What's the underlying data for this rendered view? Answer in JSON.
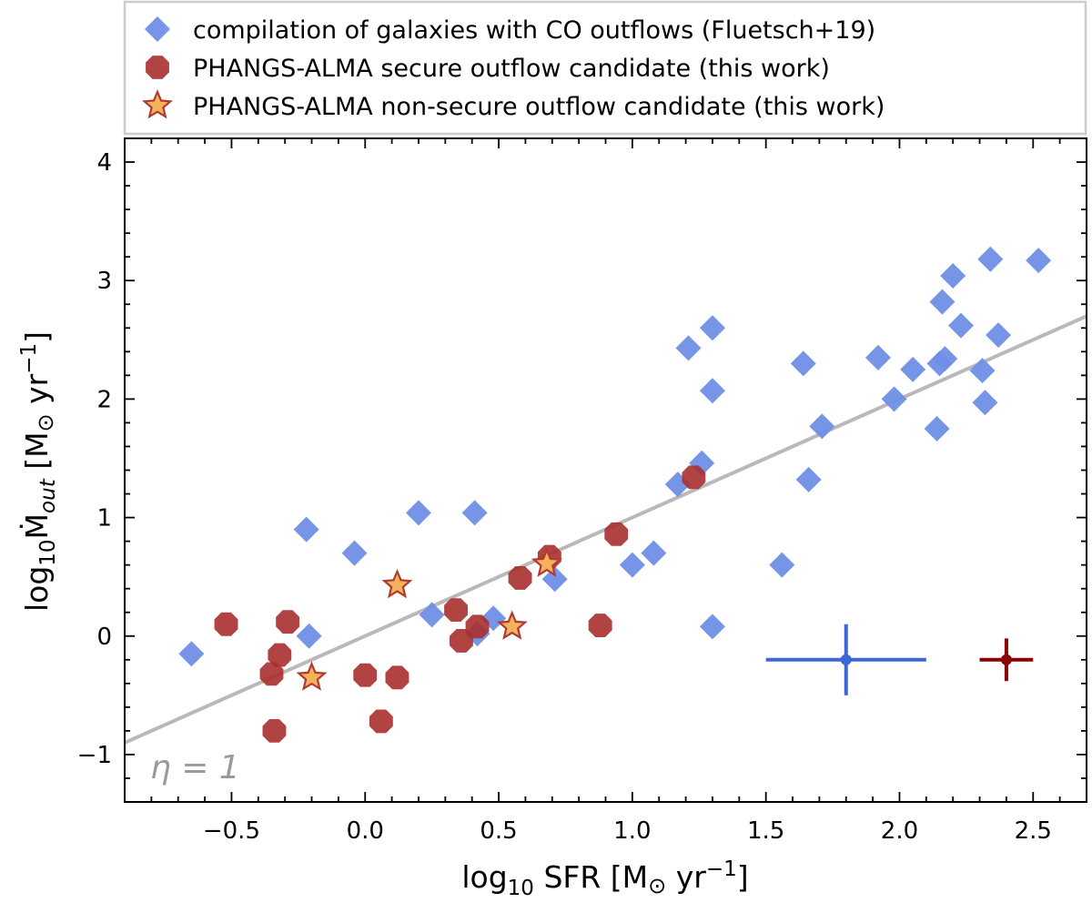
{
  "chart_data": {
    "type": "scatter",
    "xlim": [
      -0.9,
      2.7
    ],
    "ylim": [
      -1.4,
      4.2
    ],
    "xticks": [
      -0.5,
      0.0,
      0.5,
      1.0,
      1.5,
      2.0,
      2.5
    ],
    "yticks": [
      -1,
      0,
      1,
      2,
      3,
      4
    ],
    "xtick_labels": [
      "−0.5",
      "0.0",
      "0.5",
      "1.0",
      "1.5",
      "2.0",
      "2.5"
    ],
    "ytick_labels": [
      "−1",
      "0",
      "1",
      "2",
      "3",
      "4"
    ],
    "xlabel": {
      "pre": "log",
      "sub": "10",
      "mid": " SFR [M",
      "sun": "⊙",
      "post": " yr",
      "sup": "−1",
      "end": "]"
    },
    "ylabel": {
      "pre": "log",
      "sub": "10",
      "mdot": "Ṁ",
      "out": "out",
      "post": " [M",
      "sun": "⊙",
      "yr": " yr",
      "sup": "−1",
      "end": "]"
    },
    "legend_position": "top (above plot)",
    "colors": {
      "fluetsch": "#6f8fe6",
      "secure": "#a8302f",
      "nonsecure_fill": "#f6b25a",
      "nonsecure_edge": "#b03a33",
      "fit_line": "#b9b9b9",
      "err_blue": "#3d67d6",
      "err_red": "#8b0000",
      "eta_text": "#9a9a9a"
    },
    "series": [
      {
        "name": "compilation of galaxies with CO outflows (Fluetsch+19)",
        "marker": "diamond",
        "points": [
          [
            -0.65,
            -0.15
          ],
          [
            -0.22,
            0.9
          ],
          [
            -0.21,
            0.0
          ],
          [
            -0.04,
            0.7
          ],
          [
            0.2,
            1.04
          ],
          [
            0.25,
            0.18
          ],
          [
            0.41,
            1.04
          ],
          [
            0.42,
            0.02
          ],
          [
            0.48,
            0.15
          ],
          [
            0.71,
            0.48
          ],
          [
            1.0,
            0.6
          ],
          [
            1.08,
            0.7
          ],
          [
            1.17,
            1.28
          ],
          [
            1.21,
            2.43
          ],
          [
            1.26,
            1.46
          ],
          [
            1.3,
            2.6
          ],
          [
            1.3,
            2.07
          ],
          [
            1.3,
            0.08
          ],
          [
            1.56,
            0.6
          ],
          [
            1.64,
            2.3
          ],
          [
            1.66,
            1.32
          ],
          [
            1.71,
            1.77
          ],
          [
            1.92,
            2.35
          ],
          [
            1.98,
            2.0
          ],
          [
            2.05,
            2.25
          ],
          [
            2.14,
            1.75
          ],
          [
            2.15,
            2.3
          ],
          [
            2.16,
            2.82
          ],
          [
            2.17,
            2.34
          ],
          [
            2.2,
            3.04
          ],
          [
            2.23,
            2.62
          ],
          [
            2.31,
            2.24
          ],
          [
            2.32,
            1.97
          ],
          [
            2.34,
            3.18
          ],
          [
            2.37,
            2.54
          ],
          [
            2.52,
            3.17
          ]
        ]
      },
      {
        "name": "PHANGS-ALMA secure outflow candidate (this work)",
        "marker": "octagon",
        "points": [
          [
            -0.52,
            0.1
          ],
          [
            -0.35,
            -0.32
          ],
          [
            -0.34,
            -0.8
          ],
          [
            -0.32,
            -0.16
          ],
          [
            -0.29,
            0.12
          ],
          [
            0.0,
            -0.33
          ],
          [
            0.06,
            -0.72
          ],
          [
            0.12,
            -0.35
          ],
          [
            0.34,
            0.22
          ],
          [
            0.36,
            -0.04
          ],
          [
            0.42,
            0.08
          ],
          [
            0.58,
            0.49
          ],
          [
            0.69,
            0.67
          ],
          [
            0.88,
            0.09
          ],
          [
            0.94,
            0.86
          ],
          [
            1.23,
            1.34
          ]
        ]
      },
      {
        "name": "PHANGS-ALMA non-secure outflow candidate (this work)",
        "marker": "star",
        "points": [
          [
            -0.2,
            -0.35
          ],
          [
            0.12,
            0.43
          ],
          [
            0.55,
            0.08
          ],
          [
            0.68,
            0.61
          ]
        ]
      }
    ],
    "fit_line": {
      "label": "η = 1",
      "label_text": "η = 1",
      "slope": 1.0,
      "intercept": 0.0
    },
    "error_bars": [
      {
        "series": "Fluetsch+19",
        "x": 1.8,
        "y": -0.2,
        "xerr": 0.3,
        "yerr": 0.3
      },
      {
        "series": "PHANGS-ALMA",
        "x": 2.4,
        "y": -0.2,
        "xerr": 0.1,
        "yerr": 0.18
      }
    ]
  }
}
